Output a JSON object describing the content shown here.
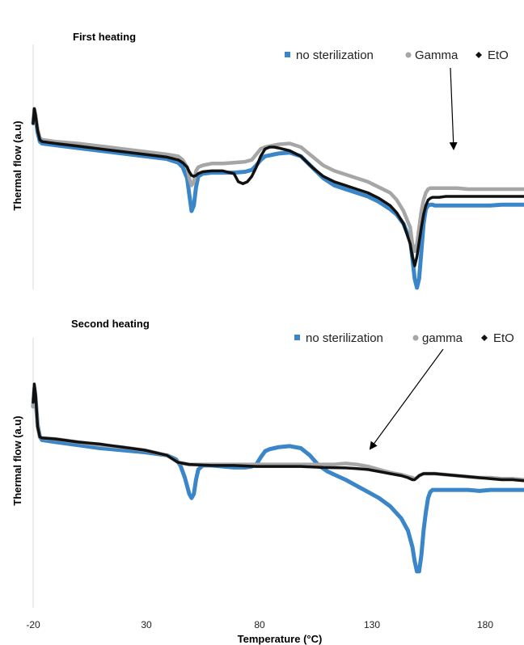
{
  "chart_data": [
    {
      "type": "line",
      "title": "First heating",
      "ylabel": "Thermal flow (a.u)",
      "xlim": [
        -20,
        200
      ],
      "ylim": [
        0,
        1
      ],
      "legend_position": "top-right",
      "series": [
        {
          "name": "no sterilization",
          "color": "#3a86c8",
          "x": [
            -20,
            -19.5,
            -19,
            -18,
            -17,
            -16,
            -10,
            0,
            10,
            20,
            30,
            40,
            45,
            47,
            49,
            50,
            51,
            52,
            53,
            54,
            56,
            60,
            65,
            70,
            75,
            78,
            80,
            82,
            84,
            86,
            88,
            90,
            95,
            100,
            105,
            110,
            115,
            120,
            125,
            130,
            135,
            140,
            143,
            146,
            149,
            150,
            151,
            152,
            153,
            154,
            155,
            156,
            157,
            158,
            159,
            160,
            162,
            165,
            170,
            175,
            180,
            185,
            190,
            195,
            200
          ],
          "y": [
            0.9,
            0.96,
            0.94,
            0.85,
            0.8,
            0.79,
            0.78,
            0.765,
            0.75,
            0.735,
            0.72,
            0.705,
            0.685,
            0.66,
            0.6,
            0.51,
            0.42,
            0.45,
            0.55,
            0.61,
            0.625,
            0.63,
            0.63,
            0.63,
            0.635,
            0.645,
            0.67,
            0.7,
            0.72,
            0.725,
            0.73,
            0.735,
            0.74,
            0.72,
            0.66,
            0.6,
            0.56,
            0.54,
            0.52,
            0.5,
            0.47,
            0.43,
            0.4,
            0.35,
            0.26,
            0.16,
            0.05,
            0.0,
            0.05,
            0.2,
            0.35,
            0.43,
            0.45,
            0.455,
            0.455,
            0.45,
            0.45,
            0.45,
            0.45,
            0.45,
            0.45,
            0.45,
            0.455,
            0.455,
            0.455
          ]
        },
        {
          "name": "Gamma",
          "color": "#a6a6a6",
          "x": [
            -20,
            -19.5,
            -19,
            -18,
            -17,
            -16,
            -10,
            0,
            10,
            20,
            30,
            40,
            45,
            47,
            49,
            50,
            51,
            52,
            53,
            54,
            56,
            60,
            65,
            70,
            75,
            78,
            80,
            82,
            84,
            86,
            88,
            90,
            95,
            100,
            105,
            110,
            115,
            120,
            125,
            130,
            135,
            140,
            143,
            146,
            149,
            150,
            151,
            152,
            153,
            154,
            155,
            156,
            157,
            158,
            159,
            160,
            162,
            165,
            170,
            175,
            180,
            185,
            190,
            195,
            200
          ],
          "y": [
            0.9,
            0.98,
            0.95,
            0.87,
            0.82,
            0.81,
            0.8,
            0.79,
            0.775,
            0.76,
            0.745,
            0.73,
            0.72,
            0.7,
            0.66,
            0.6,
            0.56,
            0.58,
            0.64,
            0.66,
            0.67,
            0.68,
            0.68,
            0.685,
            0.69,
            0.7,
            0.73,
            0.76,
            0.77,
            0.775,
            0.78,
            0.785,
            0.79,
            0.77,
            0.72,
            0.67,
            0.64,
            0.62,
            0.6,
            0.58,
            0.55,
            0.52,
            0.48,
            0.42,
            0.33,
            0.24,
            0.2,
            0.24,
            0.33,
            0.42,
            0.48,
            0.52,
            0.54,
            0.545,
            0.545,
            0.545,
            0.545,
            0.545,
            0.545,
            0.54,
            0.54,
            0.54,
            0.54,
            0.54,
            0.54
          ]
        },
        {
          "name": "EtO",
          "color": "#111111",
          "x": [
            -20,
            -19.5,
            -19,
            -18,
            -17,
            -16,
            -10,
            0,
            10,
            20,
            30,
            40,
            45,
            47,
            49,
            50,
            51,
            52,
            53,
            54,
            56,
            60,
            65,
            70,
            72,
            74,
            76,
            78,
            80,
            82,
            84,
            86,
            88,
            90,
            95,
            100,
            105,
            110,
            115,
            120,
            125,
            130,
            135,
            140,
            143,
            146,
            149,
            150,
            151,
            152,
            153,
            154,
            155,
            156,
            157,
            158,
            159,
            160,
            162,
            165,
            170,
            175,
            180,
            185,
            190,
            195,
            200
          ],
          "y": [
            0.9,
            0.98,
            0.95,
            0.86,
            0.81,
            0.8,
            0.79,
            0.775,
            0.76,
            0.745,
            0.73,
            0.715,
            0.7,
            0.685,
            0.66,
            0.635,
            0.615,
            0.61,
            0.615,
            0.625,
            0.635,
            0.64,
            0.64,
            0.625,
            0.58,
            0.57,
            0.58,
            0.61,
            0.66,
            0.72,
            0.76,
            0.77,
            0.77,
            0.765,
            0.75,
            0.72,
            0.66,
            0.61,
            0.58,
            0.56,
            0.54,
            0.52,
            0.49,
            0.45,
            0.41,
            0.35,
            0.24,
            0.17,
            0.12,
            0.17,
            0.25,
            0.33,
            0.4,
            0.45,
            0.48,
            0.49,
            0.495,
            0.495,
            0.495,
            0.5,
            0.5,
            0.5,
            0.5,
            0.5,
            0.5,
            0.5,
            0.5
          ]
        }
      ],
      "legend": [
        "no sterilization",
        "Gamma",
        "EtO"
      ]
    },
    {
      "type": "line",
      "title": "Second heating",
      "ylabel": "Thermal flow (a.u)",
      "xlabel": "Temperature (°C)",
      "xlim": [
        -20,
        200
      ],
      "ylim": [
        0,
        1
      ],
      "x_ticks": [
        "-20",
        "30",
        "80",
        "130",
        "180"
      ],
      "legend_position": "top-right",
      "series": [
        {
          "name": "no sterilization",
          "color": "#3a86c8",
          "x": [
            -20,
            -19.5,
            -19,
            -18,
            -17,
            -16,
            -10,
            0,
            10,
            20,
            30,
            40,
            44,
            46,
            48,
            50,
            51,
            52,
            53,
            54,
            56,
            60,
            65,
            70,
            75,
            78,
            80,
            82,
            84,
            86,
            88,
            90,
            95,
            100,
            104,
            108,
            112,
            116,
            120,
            125,
            130,
            135,
            140,
            145,
            148,
            150,
            151,
            152,
            153,
            154,
            155,
            156,
            157,
            158,
            159,
            160,
            162,
            165,
            170,
            175,
            180,
            185,
            190,
            195,
            200
          ],
          "y": [
            0.85,
            0.93,
            0.9,
            0.76,
            0.7,
            0.685,
            0.675,
            0.66,
            0.645,
            0.635,
            0.625,
            0.61,
            0.59,
            0.56,
            0.5,
            0.42,
            0.4,
            0.42,
            0.49,
            0.54,
            0.56,
            0.56,
            0.555,
            0.55,
            0.55,
            0.555,
            0.565,
            0.6,
            0.63,
            0.64,
            0.645,
            0.65,
            0.655,
            0.645,
            0.61,
            0.56,
            0.53,
            0.51,
            0.49,
            0.46,
            0.43,
            0.4,
            0.36,
            0.3,
            0.24,
            0.16,
            0.09,
            0.04,
            0.04,
            0.12,
            0.24,
            0.33,
            0.4,
            0.43,
            0.44,
            0.44,
            0.44,
            0.44,
            0.44,
            0.44,
            0.435,
            0.44,
            0.44,
            0.44,
            0.44
          ]
        },
        {
          "name": "gamma",
          "color": "#a6a6a6",
          "x": [
            -20,
            -19.5,
            -19,
            -18,
            -17,
            -16,
            -10,
            0,
            10,
            20,
            30,
            40,
            45,
            50,
            60,
            70,
            80,
            90,
            100,
            110,
            115,
            120,
            125,
            130,
            135,
            140,
            145,
            148,
            150,
            151,
            152,
            153,
            154,
            155,
            156,
            158,
            160,
            165,
            170,
            175,
            180,
            185,
            190,
            195,
            200
          ],
          "y": [
            0.85,
            0.94,
            0.9,
            0.75,
            0.7,
            0.695,
            0.69,
            0.675,
            0.66,
            0.65,
            0.635,
            0.61,
            0.575,
            0.565,
            0.565,
            0.565,
            0.565,
            0.565,
            0.565,
            0.565,
            0.565,
            0.57,
            0.565,
            0.555,
            0.54,
            0.525,
            0.515,
            0.505,
            0.5,
            0.495,
            0.5,
            0.51,
            0.515,
            0.52,
            0.52,
            0.52,
            0.52,
            0.515,
            0.51,
            0.505,
            0.5,
            0.5,
            0.495,
            0.495,
            0.49
          ]
        },
        {
          "name": "EtO",
          "color": "#111111",
          "x": [
            -20,
            -19.5,
            -19,
            -18,
            -17,
            -16,
            -10,
            0,
            10,
            20,
            30,
            40,
            45,
            50,
            60,
            70,
            80,
            90,
            100,
            110,
            120,
            125,
            130,
            135,
            140,
            145,
            148,
            150,
            151,
            152,
            153,
            154,
            155,
            156,
            158,
            160,
            165,
            170,
            175,
            180,
            185,
            190,
            195,
            200
          ],
          "y": [
            0.87,
            0.96,
            0.92,
            0.75,
            0.7,
            0.695,
            0.69,
            0.675,
            0.665,
            0.65,
            0.635,
            0.61,
            0.575,
            0.565,
            0.56,
            0.56,
            0.555,
            0.555,
            0.555,
            0.55,
            0.548,
            0.545,
            0.54,
            0.53,
            0.52,
            0.51,
            0.5,
            0.49,
            0.49,
            0.5,
            0.51,
            0.515,
            0.52,
            0.52,
            0.52,
            0.52,
            0.515,
            0.51,
            0.505,
            0.5,
            0.495,
            0.49,
            0.49,
            0.485
          ]
        }
      ],
      "legend": [
        "no sterilization",
        "gamma",
        "EtO"
      ]
    }
  ]
}
